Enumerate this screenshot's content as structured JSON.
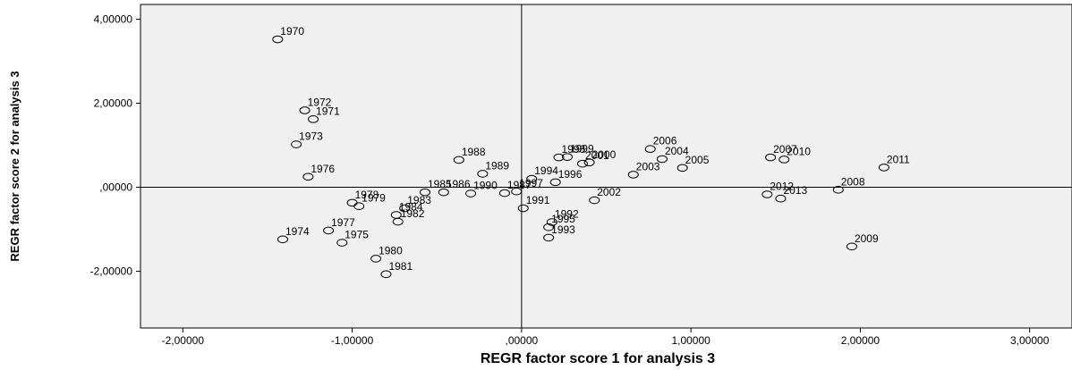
{
  "chart_data": {
    "type": "scatter",
    "xlabel": "REGR factor score   1 for analysis 3",
    "ylabel": "REGR factor score  2 for analysis 3",
    "xlim": [
      -2.25,
      3.25
    ],
    "ylim": [
      -3.35,
      4.35
    ],
    "x_ticks": [
      {
        "value": -2,
        "label": "-2,00000"
      },
      {
        "value": -1,
        "label": "-1,00000"
      },
      {
        "value": 0,
        "label": ",00000"
      },
      {
        "value": 1,
        "label": "1,00000"
      },
      {
        "value": 2,
        "label": "2,00000"
      },
      {
        "value": 3,
        "label": "3,00000"
      }
    ],
    "y_ticks": [
      {
        "value": 4,
        "label": "4,00000"
      },
      {
        "value": 2,
        "label": "2,00000"
      },
      {
        "value": 0,
        "label": ",00000"
      },
      {
        "value": -2,
        "label": "-2,00000"
      }
    ],
    "reference_lines": {
      "x": 0,
      "y": 0
    },
    "grid": false,
    "points": [
      {
        "label": "1970",
        "x": -1.44,
        "y": 3.52
      },
      {
        "label": "1971",
        "x": -1.23,
        "y": 1.62
      },
      {
        "label": "1972",
        "x": -1.28,
        "y": 1.83
      },
      {
        "label": "1973",
        "x": -1.33,
        "y": 1.02
      },
      {
        "label": "1974",
        "x": -1.41,
        "y": -1.24
      },
      {
        "label": "1975",
        "x": -1.06,
        "y": -1.32
      },
      {
        "label": "1976",
        "x": -1.26,
        "y": 0.25
      },
      {
        "label": "1977",
        "x": -1.14,
        "y": -1.03
      },
      {
        "label": "1978",
        "x": -1.0,
        "y": -0.37
      },
      {
        "label": "1979",
        "x": -0.96,
        "y": -0.45
      },
      {
        "label": "1980",
        "x": -0.86,
        "y": -1.7
      },
      {
        "label": "1981",
        "x": -0.8,
        "y": -2.07
      },
      {
        "label": "1982",
        "x": -0.73,
        "y": -0.82
      },
      {
        "label": "1983",
        "x": -0.69,
        "y": -0.5
      },
      {
        "label": "1984",
        "x": -0.74,
        "y": -0.66
      },
      {
        "label": "1985",
        "x": -0.57,
        "y": -0.12
      },
      {
        "label": "1986",
        "x": -0.46,
        "y": -0.12
      },
      {
        "label": "1987",
        "x": -0.1,
        "y": -0.14
      },
      {
        "label": "1988",
        "x": -0.37,
        "y": 0.65
      },
      {
        "label": "1989",
        "x": -0.23,
        "y": 0.32
      },
      {
        "label": "1990",
        "x": -0.3,
        "y": -0.15
      },
      {
        "label": "1991",
        "x": 0.01,
        "y": -0.5
      },
      {
        "label": "1992",
        "x": 0.18,
        "y": -0.83
      },
      {
        "label": "1993",
        "x": 0.16,
        "y": -1.2
      },
      {
        "label": "1994",
        "x": 0.06,
        "y": 0.2
      },
      {
        "label": "1995",
        "x": 0.16,
        "y": -0.95
      },
      {
        "label": "1996",
        "x": 0.2,
        "y": 0.12
      },
      {
        "label": "1997",
        "x": -0.03,
        "y": -0.1
      },
      {
        "label": "1998",
        "x": 0.22,
        "y": 0.71
      },
      {
        "label": "1999",
        "x": 0.27,
        "y": 0.72
      },
      {
        "label": "2000",
        "x": 0.4,
        "y": 0.59
      },
      {
        "label": "2001",
        "x": 0.36,
        "y": 0.56
      },
      {
        "label": "2002",
        "x": 0.43,
        "y": -0.31
      },
      {
        "label": "2003",
        "x": 0.66,
        "y": 0.3
      },
      {
        "label": "2004",
        "x": 0.83,
        "y": 0.67
      },
      {
        "label": "2005",
        "x": 0.95,
        "y": 0.46
      },
      {
        "label": "2006",
        "x": 0.76,
        "y": 0.91
      },
      {
        "label": "2007",
        "x": 1.47,
        "y": 0.71
      },
      {
        "label": "2008",
        "x": 1.87,
        "y": -0.06
      },
      {
        "label": "2009",
        "x": 1.95,
        "y": -1.41
      },
      {
        "label": "2010",
        "x": 1.55,
        "y": 0.66
      },
      {
        "label": "2011",
        "x": 2.14,
        "y": 0.47
      },
      {
        "label": "2012",
        "x": 1.45,
        "y": -0.17
      },
      {
        "label": "2013",
        "x": 1.53,
        "y": -0.27
      }
    ]
  }
}
